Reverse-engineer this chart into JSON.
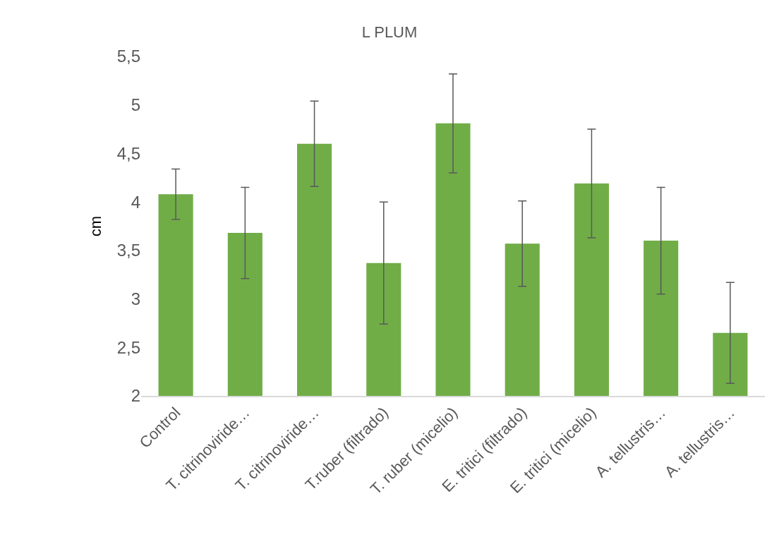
{
  "chart_data": {
    "type": "bar",
    "title": "L PLUM",
    "ylabel": "cm",
    "categories": [
      "Control",
      "T. citrinoviride…",
      "T. citrinoviride…",
      "T.ruber (filtrado)",
      "T. ruber (micelio)",
      "E. tritici (filtrado)",
      "E. tritici (micelio)",
      "A. tellustris…",
      "A. tellustris…"
    ],
    "values": [
      4.08,
      3.68,
      4.6,
      3.37,
      4.81,
      3.57,
      4.19,
      3.6,
      2.65
    ],
    "errors": [
      0.26,
      0.47,
      0.44,
      0.63,
      0.51,
      0.44,
      0.56,
      0.55,
      0.52
    ],
    "color": "#70ad47",
    "ylim": [
      2,
      5.5
    ],
    "yticks": [
      {
        "value": 2,
        "label": "2"
      },
      {
        "value": 2.5,
        "label": "2,5"
      },
      {
        "value": 3,
        "label": "3"
      },
      {
        "value": 3.5,
        "label": "3,5"
      },
      {
        "value": 4,
        "label": "4"
      },
      {
        "value": 4.5,
        "label": "4,5"
      },
      {
        "value": 5,
        "label": "5"
      },
      {
        "value": 5.5,
        "label": "5,5"
      }
    ],
    "legend": false
  }
}
